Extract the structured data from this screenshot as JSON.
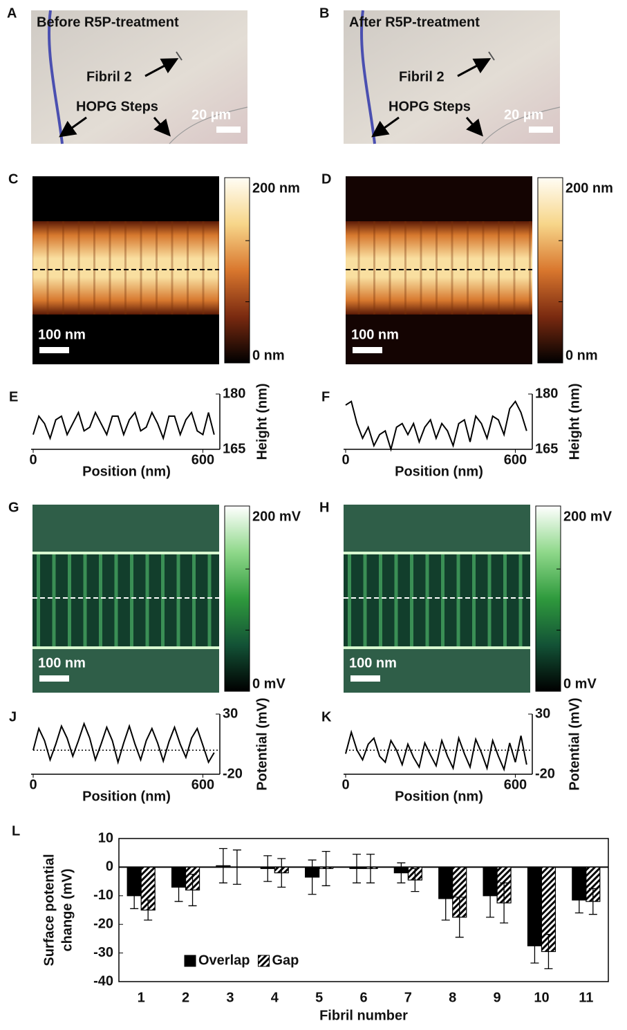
{
  "images": [
    {
      "label": "A",
      "title": "Before R5P-treatment",
      "fibril": "Fibril 2",
      "steps": "HOPG Steps",
      "scale": "20 µm"
    },
    {
      "label": "B",
      "title": "After R5P-treatment",
      "fibril": "Fibril 2",
      "steps": "HOPG Steps",
      "scale": "20 µm"
    },
    {
      "label": "C",
      "scale": "100 nm",
      "cmax": "200 nm",
      "cmin": "0 nm"
    },
    {
      "label": "D",
      "scale": "100 nm",
      "cmax": "200 nm",
      "cmin": "0 nm"
    },
    {
      "label": "G",
      "scale": "100 nm",
      "cmax": "200 mV",
      "cmin": "0 mV"
    },
    {
      "label": "H",
      "scale": "100 nm",
      "cmax": "200 mV",
      "cmin": "0 mV"
    }
  ],
  "chart_data": [
    {
      "type": "line",
      "label": "E",
      "xlabel": "Position (nm)",
      "ylabel": "Height (nm)",
      "color": "#000000",
      "x": [
        0,
        20,
        40,
        60,
        80,
        100,
        120,
        140,
        160,
        180,
        200,
        220,
        240,
        260,
        280,
        300,
        320,
        340,
        360,
        380,
        400,
        420,
        440,
        460,
        480,
        500,
        520,
        540,
        560,
        580,
        600,
        620,
        640
      ],
      "values": [
        169,
        174,
        172,
        168,
        173,
        174,
        169,
        172,
        175,
        170,
        171,
        175,
        172,
        169,
        174,
        174,
        169,
        173,
        175,
        170,
        171,
        175,
        172,
        168,
        174,
        174,
        169,
        173,
        175,
        170,
        169,
        175,
        169
      ],
      "xlim": [
        0,
        660
      ],
      "ylim": [
        165,
        180
      ],
      "xticks": [
        0,
        600
      ],
      "yticks": [
        165,
        180
      ]
    },
    {
      "type": "line",
      "label": "F",
      "xlabel": "Position (nm)",
      "ylabel": "Height (nm)",
      "color": "#000000",
      "x": [
        0,
        20,
        40,
        60,
        80,
        100,
        120,
        140,
        160,
        180,
        200,
        220,
        240,
        260,
        280,
        300,
        320,
        340,
        360,
        380,
        400,
        420,
        440,
        460,
        480,
        500,
        520,
        540,
        560,
        580,
        600,
        620,
        640
      ],
      "values": [
        177,
        178,
        172,
        168,
        171,
        166,
        169,
        170,
        165,
        171,
        172,
        169,
        172,
        167,
        171,
        173,
        168,
        172,
        170,
        166,
        172,
        173,
        167,
        174,
        172,
        168,
        174,
        173,
        169,
        176,
        178,
        175,
        170
      ],
      "xlim": [
        0,
        660
      ],
      "ylim": [
        165,
        180
      ],
      "xticks": [
        0,
        600
      ],
      "yticks": [
        165,
        180
      ]
    },
    {
      "type": "line",
      "label": "J",
      "xlabel": "Position (nm)",
      "ylabel": "Potential (mV)",
      "color": "#000000",
      "baseline": 0,
      "x": [
        0,
        20,
        40,
        60,
        80,
        100,
        120,
        140,
        160,
        180,
        200,
        220,
        240,
        260,
        280,
        300,
        320,
        340,
        360,
        380,
        400,
        420,
        440,
        460,
        480,
        500,
        520,
        540,
        560,
        580,
        600,
        620,
        640
      ],
      "values": [
        0,
        18,
        8,
        -8,
        5,
        20,
        10,
        -5,
        8,
        22,
        10,
        -8,
        5,
        19,
        8,
        -10,
        6,
        20,
        5,
        -8,
        8,
        18,
        6,
        -9,
        7,
        19,
        5,
        -6,
        10,
        18,
        4,
        -10,
        -2
      ],
      "xlim": [
        0,
        660
      ],
      "ylim": [
        -20,
        30
      ],
      "xticks": [
        0,
        600
      ],
      "yticks": [
        -20,
        30
      ]
    },
    {
      "type": "line",
      "label": "K",
      "xlabel": "Position (nm)",
      "ylabel": "Potential (mV)",
      "color": "#000000",
      "baseline": 0,
      "x": [
        0,
        20,
        40,
        60,
        80,
        100,
        120,
        140,
        160,
        180,
        200,
        220,
        240,
        260,
        280,
        300,
        320,
        340,
        360,
        380,
        400,
        420,
        440,
        460,
        480,
        500,
        520,
        540,
        560,
        580,
        600,
        620,
        640
      ],
      "values": [
        -3,
        15,
        0,
        -8,
        5,
        10,
        -5,
        -10,
        8,
        0,
        -12,
        5,
        -6,
        -14,
        6,
        -4,
        -13,
        8,
        -5,
        -15,
        10,
        -3,
        -14,
        9,
        -2,
        -15,
        8,
        -5,
        -16,
        6,
        -10,
        12,
        -12
      ],
      "xlim": [
        0,
        660
      ],
      "ylim": [
        -20,
        30
      ],
      "xticks": [
        0,
        600
      ],
      "yticks": [
        -20,
        30
      ]
    },
    {
      "type": "bar",
      "label": "L",
      "xlabel": "Fibril number",
      "ylabel": [
        "Surface potential",
        "change (mV)"
      ],
      "legend": "lower left",
      "categories": [
        "1",
        "2",
        "3",
        "4",
        "5",
        "6",
        "7",
        "8",
        "9",
        "10",
        "11"
      ],
      "series": [
        {
          "name": "Overlap",
          "color": "#000000",
          "values": [
            -10,
            -7,
            0.5,
            -0.5,
            -3.5,
            -0.5,
            -2,
            -11,
            -10,
            -27.5,
            -11.5
          ],
          "errors": [
            4.5,
            5,
            6,
            4.5,
            6,
            5,
            3.5,
            7.5,
            7.5,
            6,
            4.5
          ]
        },
        {
          "name": "Gap",
          "color": "hatch",
          "values": [
            -15,
            -8,
            0,
            -2,
            -0.5,
            -0.5,
            -4.5,
            -17.5,
            -12.5,
            -29.5,
            -12
          ],
          "errors": [
            3.5,
            5.5,
            6,
            5,
            6,
            5,
            4,
            7,
            7,
            6,
            4.5
          ]
        }
      ],
      "ylim": [
        -40,
        10
      ],
      "yticks": [
        -40,
        -30,
        -20,
        -10,
        0,
        10
      ]
    }
  ]
}
